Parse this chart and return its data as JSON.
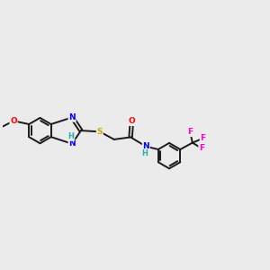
{
  "background_color": "#ebebeb",
  "bond_color": "#1a1a1a",
  "atom_colors": {
    "O": "#ff0000",
    "N": "#0000ff",
    "S": "#ccaa00",
    "F": "#ff00cc",
    "H": "#20b2aa",
    "C": "#1a1a1a"
  },
  "bond_width": 1.4,
  "figsize": [
    3.0,
    3.0
  ],
  "dpi": 100,
  "xlim": [
    -3.5,
    8.5
  ],
  "ylim": [
    -3.5,
    3.5
  ]
}
